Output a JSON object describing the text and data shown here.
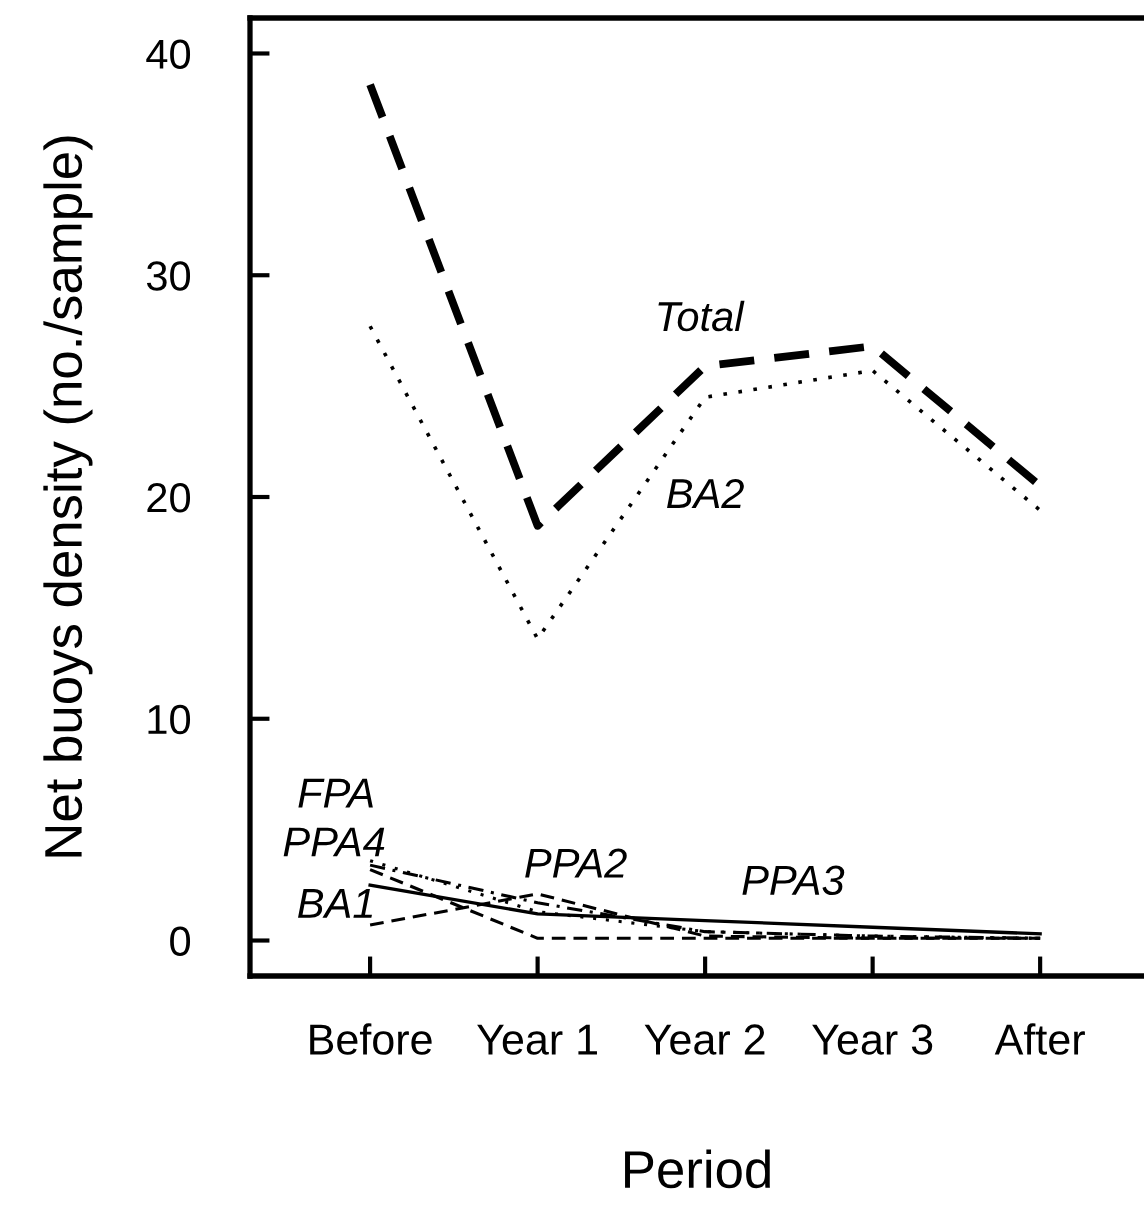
{
  "chart_data": {
    "type": "line",
    "xlabel": "Period",
    "ylabel": "Net buoys density (no./sample)",
    "categories": [
      "Before",
      "Year 1",
      "Year 2",
      "Year 3",
      "After"
    ],
    "ylim": [
      -1.6,
      41.6
    ],
    "yticks": [
      0,
      10,
      20,
      30,
      40
    ],
    "grid": false,
    "legend": false,
    "series": [
      {
        "name": "Total",
        "color": "#000000",
        "line_style": "dashed",
        "values": [
          38.6,
          18.7,
          25.9,
          26.8,
          20.5
        ]
      },
      {
        "name": "BA2",
        "color": "#000000",
        "line_style": "dotted",
        "values": [
          27.7,
          13.6,
          24.5,
          25.7,
          19.4
        ]
      },
      {
        "name": "FPA",
        "color": "#000000",
        "line_style": "dotted",
        "values": [
          3.6,
          1.3,
          0.4,
          0.2,
          0.1
        ]
      },
      {
        "name": "PPA4",
        "color": "#000000",
        "line_style": "dashed",
        "values": [
          3.2,
          0.1,
          0.1,
          0.1,
          0.1
        ]
      },
      {
        "name": "BA1",
        "color": "#000000",
        "line_style": "dashed",
        "values": [
          0.7,
          2.1,
          0.2,
          0.1,
          0.1
        ]
      },
      {
        "name": "PPA2",
        "color": "#000000",
        "line_style": "dashdot",
        "values": [
          3.4,
          1.7,
          0.4,
          0.2,
          0.1
        ]
      },
      {
        "name": "PPA3",
        "color": "#000000",
        "line_style": "solid",
        "values": [
          2.5,
          1.2,
          0.9,
          0.6,
          0.3
        ]
      }
    ]
  }
}
